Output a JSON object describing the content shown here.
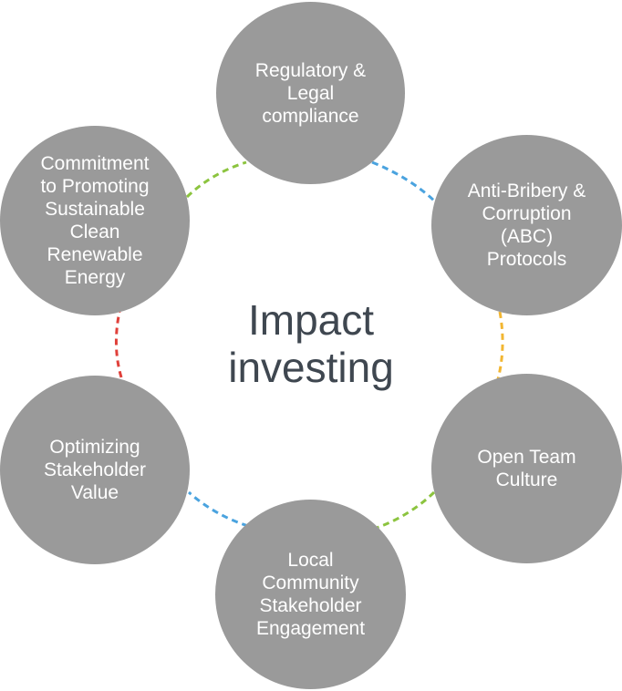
{
  "center_title": "Impact\ninvesting",
  "nodes": [
    {
      "label": "Regulatory &\nLegal\ncompliance"
    },
    {
      "label": "Anti-Bribery &\nCorruption\n(ABC)\nProtocols"
    },
    {
      "label": "Open Team\nCulture"
    },
    {
      "label": "Local\nCommunity\nStakeholder\nEngagement"
    },
    {
      "label": "Optimizing\nStakeholder\nValue"
    },
    {
      "label": "Commitment\nto Promoting\nSustainable\nClean\nRenewable\nEnergy"
    }
  ],
  "connector_colors": {
    "blue": "#4aa3df",
    "yellow": "#f2b632",
    "green": "#8cc43f",
    "red": "#e0403a"
  }
}
